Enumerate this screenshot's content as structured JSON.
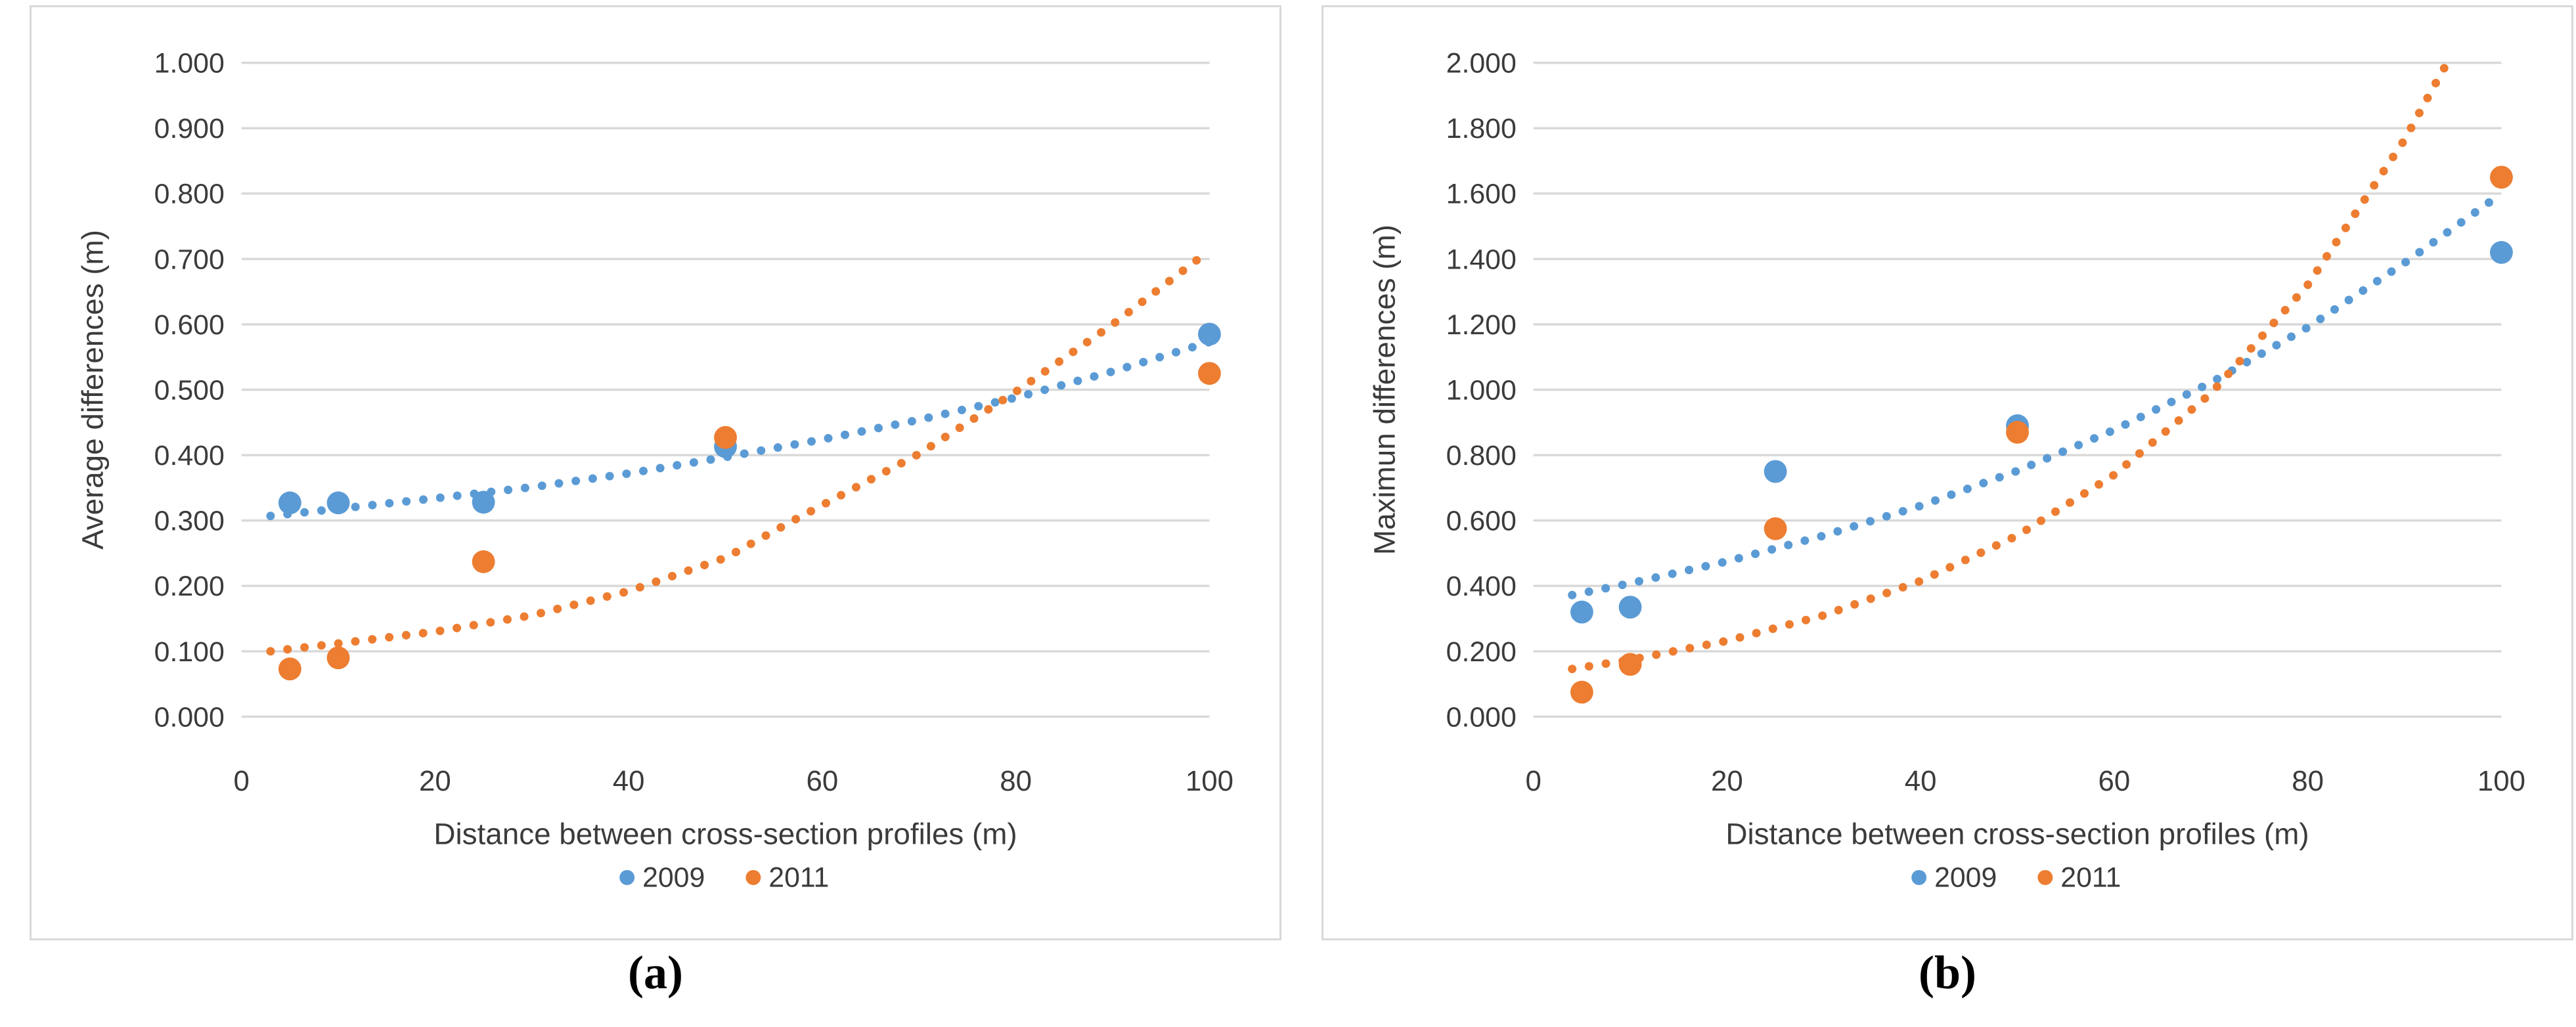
{
  "page": {
    "background": "#FFFFFF",
    "grid_color": "#D9D9D9",
    "text_color": "#3B3B3B"
  },
  "chart_data": [
    {
      "id": "a",
      "type": "scatter",
      "caption": "(a)",
      "xlabel": "Distance between cross-section profiles (m)",
      "ylabel": "Average differences (m)",
      "xlim": [
        0,
        100
      ],
      "ylim": [
        0,
        1.0
      ],
      "xticks": [
        "0",
        "20",
        "40",
        "60",
        "80",
        "100"
      ],
      "yticks": [
        "1.000",
        "0.900",
        "0.800",
        "0.700",
        "0.600",
        "0.500",
        "0.400",
        "0.300",
        "0.200",
        "0.100",
        "0.000"
      ],
      "grid": true,
      "legend_position": "bottom",
      "series": [
        {
          "name": "2009",
          "color": "#5B9BD5",
          "marker": "circle",
          "points": [
            [
              5,
              0.327
            ],
            [
              10,
              0.327
            ],
            [
              25,
              0.328
            ],
            [
              50,
              0.413
            ],
            [
              100,
              0.585
            ]
          ],
          "trendline_style": "dotted",
          "trendline": [
            [
              3,
              0.307
            ],
            [
              10,
              0.318
            ],
            [
              20,
              0.334
            ],
            [
              30,
              0.351
            ],
            [
              40,
              0.372
            ],
            [
              50,
              0.397
            ],
            [
              60,
              0.424
            ],
            [
              70,
              0.454
            ],
            [
              80,
              0.488
            ],
            [
              90,
              0.528
            ],
            [
              100,
              0.573
            ]
          ]
        },
        {
          "name": "2011",
          "color": "#ED7D31",
          "marker": "circle",
          "points": [
            [
              5,
              0.073
            ],
            [
              10,
              0.09
            ],
            [
              25,
              0.237
            ],
            [
              50,
              0.427
            ],
            [
              100,
              0.525
            ]
          ],
          "trendline_style": "dotted",
          "trendline": [
            [
              3,
              0.1
            ],
            [
              10,
              0.112
            ],
            [
              20,
              0.13
            ],
            [
              30,
              0.155
            ],
            [
              40,
              0.192
            ],
            [
              50,
              0.243
            ],
            [
              57,
              0.3
            ],
            [
              70,
              0.402
            ],
            [
              80,
              0.497
            ],
            [
              90,
              0.6
            ],
            [
              100,
              0.713
            ]
          ]
        }
      ]
    },
    {
      "id": "b",
      "type": "scatter",
      "caption": "(b)",
      "xlabel": "Distance between cross-section profiles (m)",
      "ylabel": "Maximun differences (m)",
      "xlim": [
        0,
        100
      ],
      "ylim": [
        0,
        2.0
      ],
      "xticks": [
        "0",
        "20",
        "40",
        "60",
        "80",
        "100"
      ],
      "yticks": [
        "2.000",
        "1.800",
        "1.600",
        "1.400",
        "1.200",
        "1.000",
        "0.800",
        "0.600",
        "0.400",
        "0.200",
        "0.000"
      ],
      "grid": true,
      "legend_position": "bottom",
      "series": [
        {
          "name": "2009",
          "color": "#5B9BD5",
          "marker": "circle",
          "points": [
            [
              5,
              0.32
            ],
            [
              10,
              0.335
            ],
            [
              25,
              0.75
            ],
            [
              50,
              0.89
            ],
            [
              100,
              1.42
            ]
          ],
          "trendline_style": "dotted",
          "trendline": [
            [
              4,
              0.372
            ],
            [
              10,
              0.408
            ],
            [
              20,
              0.475
            ],
            [
              30,
              0.554
            ],
            [
              40,
              0.645
            ],
            [
              50,
              0.752
            ],
            [
              60,
              0.877
            ],
            [
              70,
              1.022
            ],
            [
              80,
              1.191
            ],
            [
              90,
              1.388
            ],
            [
              100,
              1.6
            ]
          ]
        },
        {
          "name": "2011",
          "color": "#ED7D31",
          "marker": "circle",
          "points": [
            [
              5,
              0.075
            ],
            [
              10,
              0.16
            ],
            [
              25,
              0.575
            ],
            [
              50,
              0.87
            ],
            [
              100,
              1.65
            ]
          ],
          "trendline_style": "dotted",
          "trendline": [
            [
              4,
              0.146
            ],
            [
              10,
              0.174
            ],
            [
              20,
              0.232
            ],
            [
              30,
              0.31
            ],
            [
              40,
              0.415
            ],
            [
              50,
              0.554
            ],
            [
              60,
              0.74
            ],
            [
              70,
              0.989
            ],
            [
              80,
              1.321
            ],
            [
              90,
              1.765
            ],
            [
              94,
              1.98
            ],
            [
              96,
              2.06
            ]
          ]
        }
      ]
    }
  ]
}
